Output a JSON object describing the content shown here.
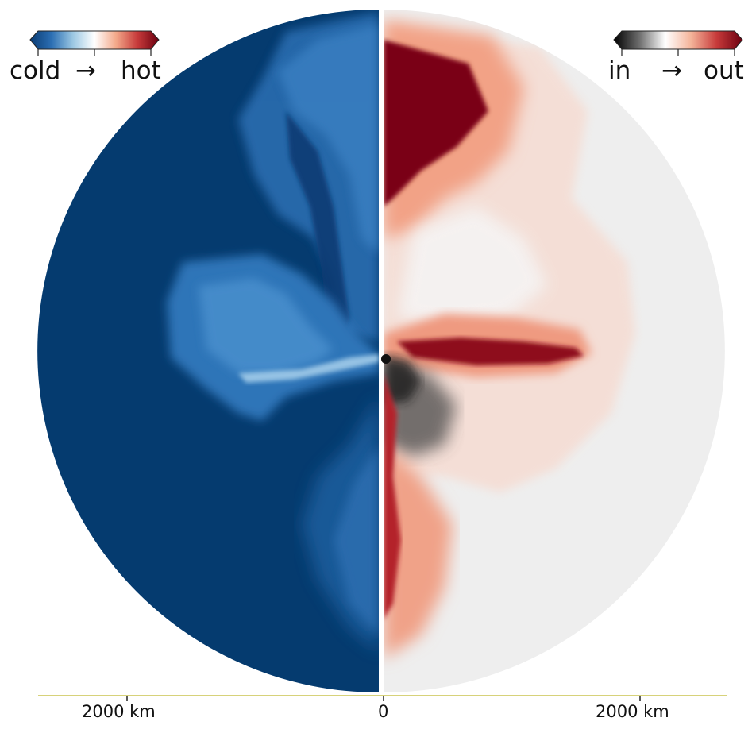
{
  "colorbar_left": {
    "label_low": "cold",
    "label_arrow": "→",
    "label_high": "hot",
    "colors": [
      "#0a3b73",
      "#2c6fb3",
      "#9cc8e3",
      "#ffffff",
      "#f3a98a",
      "#c73a3a",
      "#6b0010"
    ]
  },
  "colorbar_right": {
    "label_low": "in",
    "label_arrow": "→",
    "label_high": "out",
    "colors": [
      "#000000",
      "#6e6e6e",
      "#ffffff",
      "#f4b49a",
      "#c73a3a",
      "#6b0010"
    ]
  },
  "axis": {
    "tick_left": "2000 km",
    "tick_center": "0",
    "tick_right": "2000 km"
  },
  "panels": {
    "left_background": "#053b6f",
    "right_background": "#eeeeee"
  }
}
